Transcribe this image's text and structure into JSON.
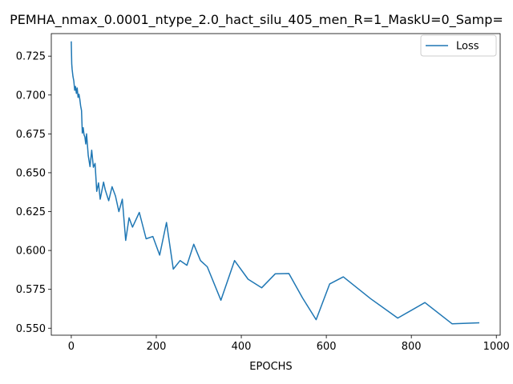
{
  "chart_data": {
    "type": "line",
    "title": "PEMHA_nmax_0.0001_ntype_2.0_hact_silu_405_men_R=1_MaskU=0_Samp=",
    "xlabel": "EPOCHS",
    "ylabel": "",
    "xlim": [
      -47,
      1009
    ],
    "ylim": [
      0.5455,
      0.7395
    ],
    "xticks": [
      0,
      200,
      400,
      600,
      800,
      1000
    ],
    "yticks": [
      0.55,
      0.575,
      0.6,
      0.625,
      0.65,
      0.675,
      0.7,
      0.725
    ],
    "xtick_labels": [
      "0",
      "200",
      "400",
      "600",
      "800",
      "1000"
    ],
    "ytick_labels": [
      "0.550",
      "0.575",
      "0.600",
      "0.625",
      "0.650",
      "0.675",
      "0.700",
      "0.725"
    ],
    "grid": false,
    "legend_position": "top-right",
    "series": [
      {
        "name": "Loss",
        "color": "#1f77b4",
        "x": [
          0,
          1,
          2,
          4,
          6,
          8,
          10,
          12,
          14,
          16,
          18,
          20,
          22,
          24,
          26,
          28,
          30,
          32,
          34,
          36,
          40,
          44,
          48,
          52,
          56,
          60,
          64,
          68,
          72,
          76,
          80,
          88,
          96,
          104,
          112,
          120,
          128,
          136,
          144,
          160,
          176,
          192,
          208,
          224,
          240,
          256,
          272,
          288,
          304,
          320,
          352,
          384,
          416,
          448,
          480,
          512,
          544,
          576,
          608,
          640,
          704,
          768,
          832,
          896,
          960
        ],
        "y": [
          0.7345,
          0.72,
          0.7165,
          0.712,
          0.709,
          0.703,
          0.7055,
          0.701,
          0.7045,
          0.6985,
          0.7005,
          0.6975,
          0.693,
          0.69,
          0.6755,
          0.679,
          0.6745,
          0.673,
          0.6685,
          0.675,
          0.661,
          0.654,
          0.6645,
          0.6535,
          0.656,
          0.638,
          0.6435,
          0.633,
          0.6385,
          0.644,
          0.639,
          0.632,
          0.641,
          0.635,
          0.625,
          0.633,
          0.6065,
          0.621,
          0.615,
          0.6245,
          0.6075,
          0.609,
          0.597,
          0.618,
          0.588,
          0.5935,
          0.5905,
          0.604,
          0.5935,
          0.5895,
          0.568,
          0.5935,
          0.5815,
          0.576,
          0.585,
          0.5852,
          0.5695,
          0.5555,
          0.5785,
          0.583,
          0.569,
          0.5565,
          0.5665,
          0.5528,
          0.5535
        ]
      }
    ]
  }
}
